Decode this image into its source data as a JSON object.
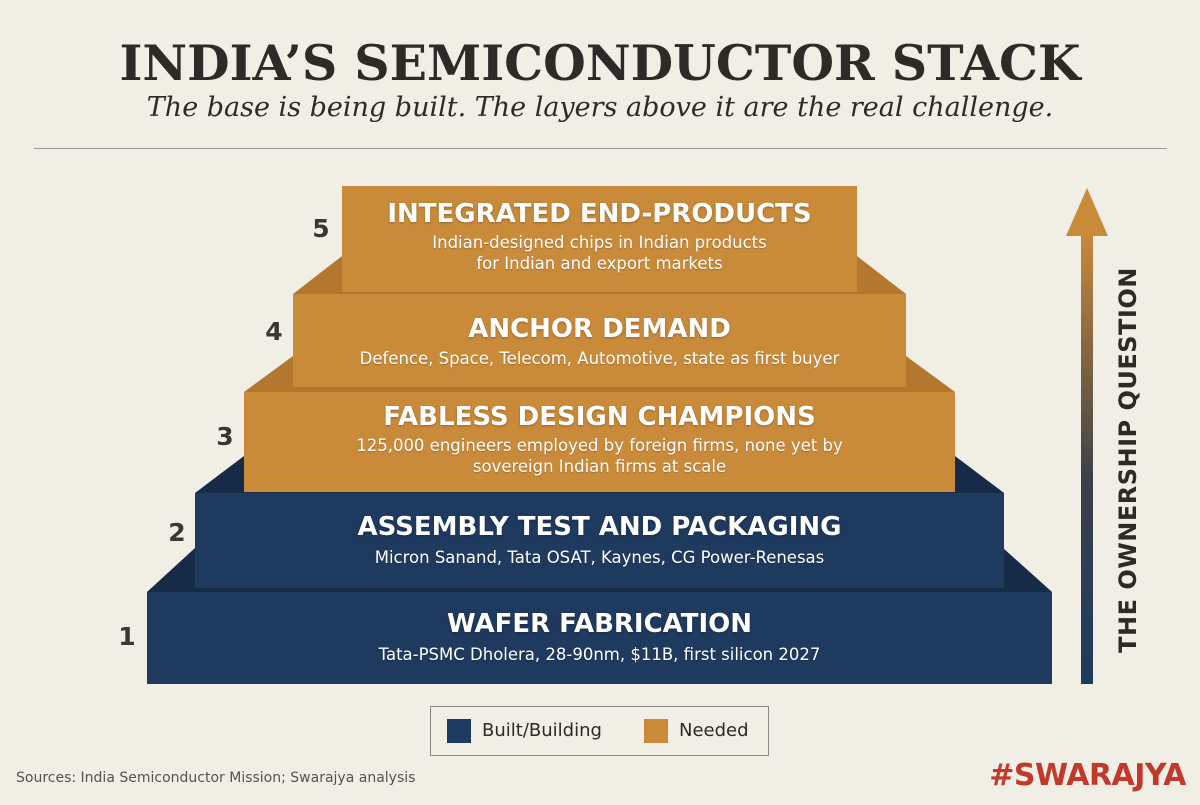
{
  "header": {
    "title": "INDIA’S SEMICONDUCTOR STACK",
    "subtitle": "The base is being built. The layers above it are the real challenge."
  },
  "colors": {
    "built": "#1f3a5f",
    "needed": "#c98a3a",
    "background": "#f1eee6"
  },
  "tiers": [
    {
      "number": "1",
      "title": "WAFER FABRICATION",
      "description": "Tata-PSMC Dholera, 28-90nm, $11B, first silicon 2027",
      "status": "built"
    },
    {
      "number": "2",
      "title": "ASSEMBLY TEST AND PACKAGING",
      "description": "Micron Sanand, Tata OSAT, Kaynes, CG Power-Renesas",
      "status": "built"
    },
    {
      "number": "3",
      "title": "FABLESS DESIGN CHAMPIONS",
      "description_lines": [
        "125,000 engineers employed by foreign firms, none yet by",
        "sovereign Indian firms at scale"
      ],
      "status": "needed"
    },
    {
      "number": "4",
      "title": "ANCHOR DEMAND",
      "description": "Defence, Space, Telecom, Automotive, state as first buyer",
      "status": "needed"
    },
    {
      "number": "5",
      "title": "INTEGRATED END-PRODUCTS",
      "description_lines": [
        "Indian-designed chips in Indian products",
        "for Indian and export markets"
      ],
      "status": "needed"
    }
  ],
  "arrow": {
    "label": "THE OWNERSHIP QUESTION"
  },
  "legend": {
    "built_label": "Built/Building",
    "needed_label": "Needed"
  },
  "footer": {
    "source": "Sources: India Semiconductor Mission; Swarajya analysis",
    "brand": "#SWARAJYA"
  }
}
